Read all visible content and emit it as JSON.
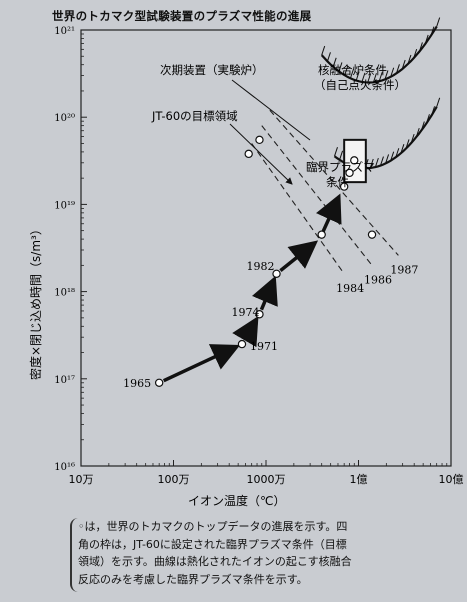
{
  "title": "世界のトカマク型試験装置のプラズマ性能の進展",
  "chart_data": {
    "type": "scatter",
    "xlabel": "イオン温度（℃）",
    "ylabel": "密度×閉じ込め時間（s/m³）",
    "x_scale": "log",
    "y_scale": "log",
    "xlim": [
      100000,
      1000000000
    ],
    "ylim": [
      1e+16,
      1e+21
    ],
    "x_ticks": [
      {
        "value": 100000,
        "label": "10万"
      },
      {
        "value": 1000000,
        "label": "100万"
      },
      {
        "value": 10000000,
        "label": "1000万"
      },
      {
        "value": 100000000,
        "label": "1億"
      },
      {
        "value": 1000000000,
        "label": "10億"
      }
    ],
    "y_ticks": [
      {
        "value": 1e+16,
        "label": "10¹⁶"
      },
      {
        "value": 1e+17,
        "label": "10¹⁷"
      },
      {
        "value": 1e+18,
        "label": "10¹⁸"
      },
      {
        "value": 1e+19,
        "label": "10¹⁹"
      },
      {
        "value": 1e+20,
        "label": "10²⁰"
      },
      {
        "value": 1e+21,
        "label": "10²¹"
      }
    ],
    "points": [
      {
        "x": 700000,
        "y": 9e+16,
        "label": "1965"
      },
      {
        "x": 5500000,
        "y": 2.5e+17,
        "label": "1971"
      },
      {
        "x": 8500000,
        "y": 5.5e+17,
        "label": "1974"
      },
      {
        "x": 13000000,
        "y": 1.6e+18,
        "label": "1982"
      },
      {
        "x": 40000000,
        "y": 4.5e+18,
        "label": ""
      },
      {
        "x": 140000000,
        "y": 4.5e+18,
        "label": ""
      },
      {
        "x": 70000000,
        "y": 1.6e+19,
        "label": ""
      },
      {
        "x": 80000000,
        "y": 2.3e+19,
        "label": ""
      },
      {
        "x": 90000000,
        "y": 3.2e+19,
        "label": ""
      },
      {
        "x": 6500000,
        "y": 3.8e+19,
        "label": ""
      },
      {
        "x": 8500000,
        "y": 5.5e+19,
        "label": ""
      }
    ],
    "progress_path": [
      "1965",
      "1971",
      "1974",
      "1982"
    ],
    "boundaries": [
      {
        "name": "1984",
        "label": "1984",
        "points": [
          [
            7000000,
            5e+19
          ],
          [
            70000000,
            1.6e+18
          ]
        ]
      },
      {
        "name": "1986",
        "label": "1986",
        "points": [
          [
            9000000,
            8e+19
          ],
          [
            140000000,
            2e+18
          ]
        ]
      },
      {
        "name": "1987",
        "label": "1987",
        "points": [
          [
            11000000,
            1.2e+20
          ],
          [
            270000000,
            2.6e+18
          ]
        ]
      }
    ],
    "annotations": [
      {
        "text": "次期装置（実験炉）"
      },
      {
        "text": "JT-60の目標領域"
      },
      {
        "text": "核融合炉条件"
      },
      {
        "text": "（自己点火条件）"
      },
      {
        "text": "臨界プラズマ"
      },
      {
        "text": "条件"
      }
    ]
  },
  "caption": {
    "lines": [
      "◦は，世界のトカマクのトップデータの進展を示す。四",
      "角の枠は，JT-60に設定された臨界プラズマ条件（目標",
      "領域）を示す。曲線は熱化されたイオンの起こす核融合",
      "反応のみを考慮した臨界プラズマ条件を示す。"
    ]
  }
}
